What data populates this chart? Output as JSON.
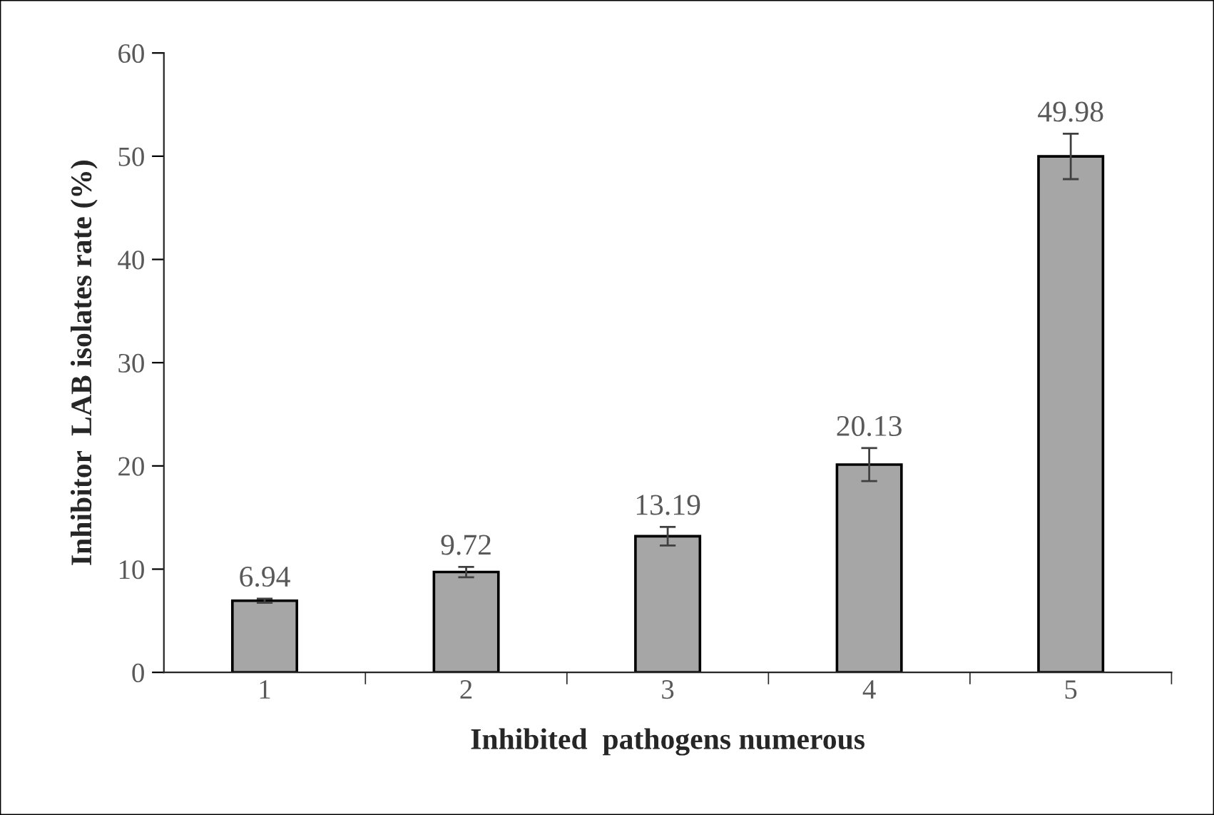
{
  "chart_data": {
    "type": "bar",
    "xlabel": "Inhibited  pathogens numerous",
    "ylabel": "Inhibitor  LAB isolates rate (%)",
    "categories": [
      "1",
      "2",
      "3",
      "4",
      "5"
    ],
    "values": [
      6.94,
      9.72,
      13.19,
      20.13,
      49.98
    ],
    "errors": [
      0.2,
      0.5,
      0.9,
      1.6,
      2.2
    ],
    "color": "#a6a6a6",
    "ylim": [
      0,
      60
    ],
    "yticks": [
      0,
      10,
      20,
      30,
      40,
      50,
      60
    ],
    "data_labels": true,
    "grid": false,
    "legend": false
  }
}
